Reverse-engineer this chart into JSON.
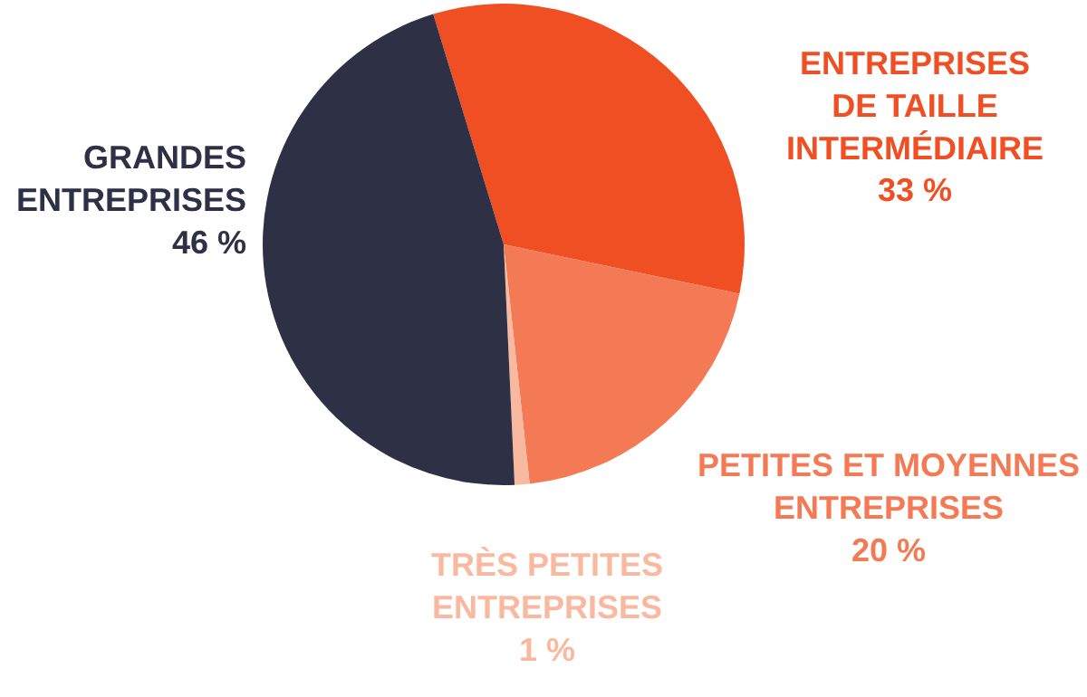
{
  "chart_data": {
    "type": "pie",
    "categories": [
      "ENTREPRISES DE TAILLE INTERMÉDIAIRE",
      "PETITES ET MOYENNES ENTREPRISES",
      "TRÈS PETITES ENTREPRISES",
      "GRANDES ENTREPRISES"
    ],
    "values": [
      33,
      20,
      1,
      46
    ],
    "value_labels": [
      "33 %",
      "20 %",
      "1 %",
      "46 %"
    ],
    "colors": [
      "#f04e23",
      "#f47a55",
      "#f9b9a0",
      "#2e3045"
    ],
    "legend": false
  }
}
